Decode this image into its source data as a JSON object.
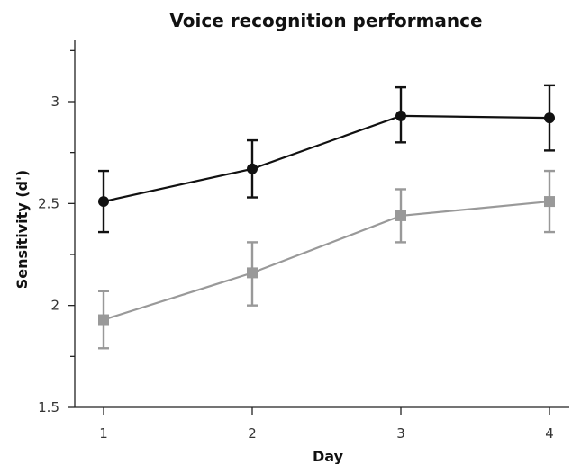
{
  "chart_data": {
    "type": "line",
    "title": "Voice recognition performance",
    "xlabel": "Day",
    "ylabel": "Sensitivity (d')",
    "x": [
      1,
      2,
      3,
      4
    ],
    "xlim": [
      0.8,
      4.15
    ],
    "ylim": [
      1.5,
      3.33
    ],
    "yticks": [
      1.5,
      2,
      2.5,
      3
    ],
    "ytick_labels": [
      "1.5",
      "2",
      "2.5",
      "3"
    ],
    "xtick_labels": [
      "1",
      "2",
      "3",
      "4"
    ],
    "grid": false,
    "legend": "none",
    "series": [
      {
        "color": "#111111",
        "marker": "circle",
        "values": [
          2.51,
          2.67,
          2.93,
          2.92
        ],
        "error_lower": [
          2.36,
          2.53,
          2.8,
          2.76
        ],
        "error_upper": [
          2.66,
          2.81,
          3.07,
          3.08
        ]
      },
      {
        "color": "#999999",
        "marker": "square",
        "values": [
          1.93,
          2.16,
          2.44,
          2.51
        ],
        "error_lower": [
          1.79,
          2.0,
          2.31,
          2.36
        ],
        "error_upper": [
          2.07,
          2.31,
          2.57,
          2.66
        ]
      }
    ]
  }
}
